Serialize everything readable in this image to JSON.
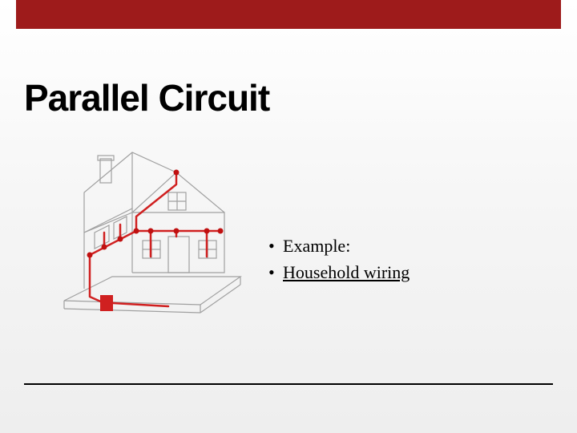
{
  "accent_color": "#9e1b1b",
  "title": "Parallel Circuit",
  "bullets": [
    {
      "text": "Example:",
      "underline": false
    },
    {
      "text": "Household wiring",
      "underline": true
    }
  ],
  "diagram": {
    "type": "infographic",
    "description": "house-wiring-illustration",
    "background_color": "#ffffff",
    "outline_color": "#a0a0a0",
    "wire_color": "#d02020",
    "node_color": "#c01010",
    "outline_width": 1.2,
    "wire_width": 2.5,
    "node_radius": 3.5
  }
}
